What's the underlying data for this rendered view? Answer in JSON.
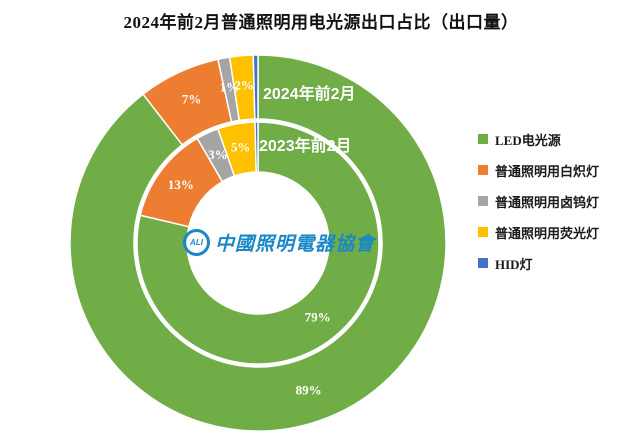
{
  "title": "2024年前2月普通照明用电光源出口占比（出口量）",
  "chart_data": {
    "type": "pie",
    "subtype": "double-ring-donut",
    "title": "2024年前2月普通照明用电光源出口占比（出口量）",
    "categories": [
      "LED电光源",
      "普通照明用白炽灯",
      "普通照明用卤钨灯",
      "普通照明用荧光灯",
      "HID灯"
    ],
    "colors": [
      "#70AD47",
      "#ED7D31",
      "#A5A5A5",
      "#FFC000",
      "#4472C4"
    ],
    "unit": "%",
    "legend_position": "right",
    "data_label_color": "#ffffff",
    "rings": [
      {
        "name": "2024年前2月",
        "ring": "outer",
        "values": [
          89,
          7,
          1,
          2,
          0.4
        ],
        "labels": [
          "89%",
          "7%",
          "1%",
          "2%",
          ""
        ]
      },
      {
        "name": "2023年前2月",
        "ring": "inner",
        "values": [
          79,
          13,
          3,
          5,
          0.4
        ],
        "labels": [
          "79%",
          "13%",
          "3%",
          "5%",
          ""
        ]
      }
    ],
    "center_logo_text": "中國照明電器協會"
  },
  "legend": {
    "items": [
      {
        "label": "LED电光源",
        "color": "#70AD47"
      },
      {
        "label": "普通照明用白炽灯",
        "color": "#ED7D31"
      },
      {
        "label": "普通照明用卤钨灯",
        "color": "#A5A5A5"
      },
      {
        "label": "普通照明用荧光灯",
        "color": "#FFC000"
      },
      {
        "label": "HID灯",
        "color": "#4472C4"
      }
    ]
  },
  "logo": {
    "circle_text": "ALI",
    "text": "中國照明電器協會",
    "color": "#1987C8"
  }
}
